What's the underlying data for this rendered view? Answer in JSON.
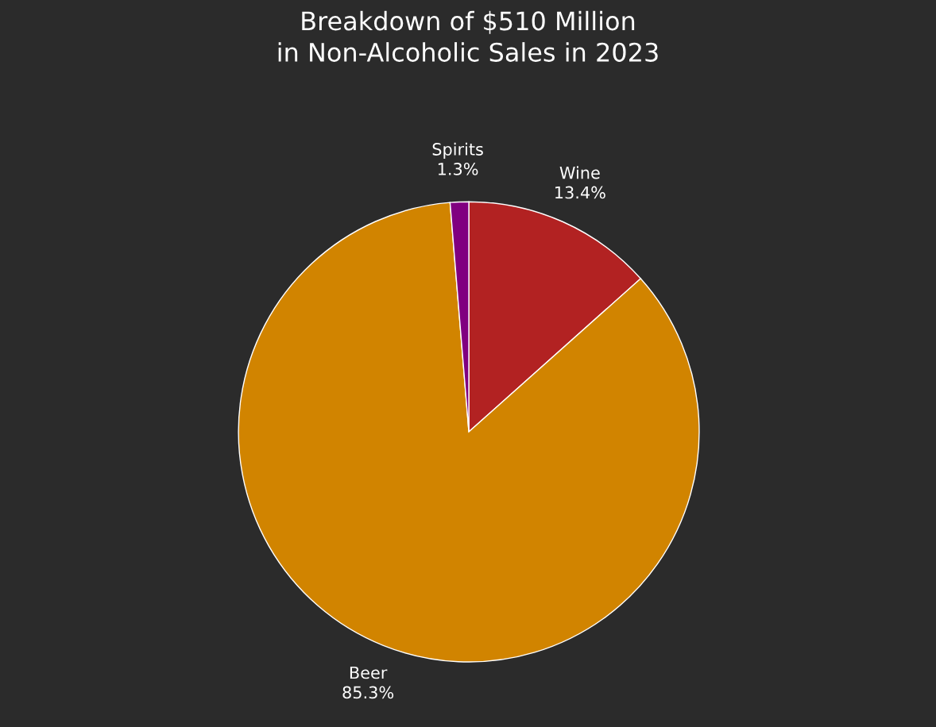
{
  "chart_data": {
    "type": "pie",
    "title": "Breakdown of $510 Million\nin Non-Alcoholic Sales in 2023",
    "categories": [
      "Wine",
      "Beer",
      "Spirits"
    ],
    "values": [
      13.4,
      85.3,
      1.3
    ],
    "value_labels": [
      "13.4%",
      "85.3%",
      "1.3%"
    ],
    "colors": [
      "#b22222",
      "#d18400",
      "#800080"
    ],
    "legend": false
  }
}
